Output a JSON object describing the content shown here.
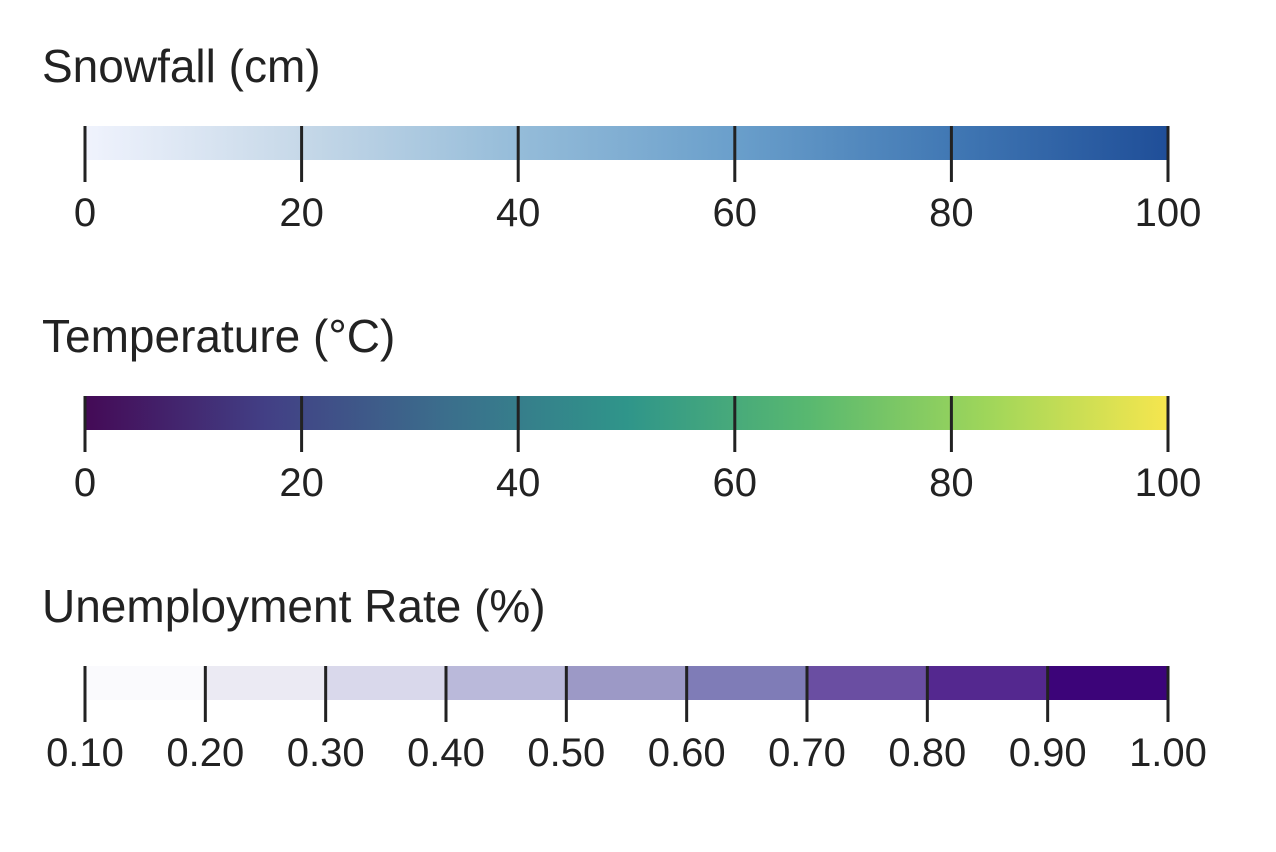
{
  "chart_data": [
    {
      "type": "colorbar",
      "title": "Snowfall (cm)",
      "scale": "continuous",
      "range": [
        0,
        100
      ],
      "ticks": [
        0,
        20,
        40,
        60,
        80,
        100
      ],
      "tick_labels": [
        "0",
        "20",
        "40",
        "60",
        "80",
        "100"
      ],
      "colormap": "Blues",
      "colors": [
        "#f0f3fd",
        "#c6d8e8",
        "#95bcd9",
        "#6a9fcb",
        "#4178b4",
        "#1f4e98"
      ]
    },
    {
      "type": "colorbar",
      "title": "Temperature (°C)",
      "scale": "continuous",
      "range": [
        0,
        100
      ],
      "ticks": [
        0,
        20,
        40,
        60,
        80,
        100
      ],
      "tick_labels": [
        "0",
        "20",
        "40",
        "60",
        "80",
        "100"
      ],
      "colormap": "viridis",
      "colors": [
        "#440a56",
        "#423f85",
        "#3b6e8c",
        "#2f958a",
        "#58b870",
        "#9fd65a",
        "#f6e64e"
      ]
    },
    {
      "type": "colorbar",
      "title": "Unemployment Rate (%)",
      "scale": "discrete",
      "range": [
        0.1,
        1.0
      ],
      "ticks": [
        0.1,
        0.2,
        0.3,
        0.4,
        0.5,
        0.6,
        0.7,
        0.8,
        0.9,
        1.0
      ],
      "tick_labels": [
        "0.10",
        "0.20",
        "0.30",
        "0.40",
        "0.50",
        "0.60",
        "0.70",
        "0.80",
        "0.90",
        "1.00"
      ],
      "colormap": "Purples",
      "colors": [
        "#fafafd",
        "#ebeaf3",
        "#d9d8eb",
        "#bab9da",
        "#9c99c6",
        "#7f7cb7",
        "#6a4ea2",
        "#54288f",
        "#3c0479"
      ]
    }
  ]
}
